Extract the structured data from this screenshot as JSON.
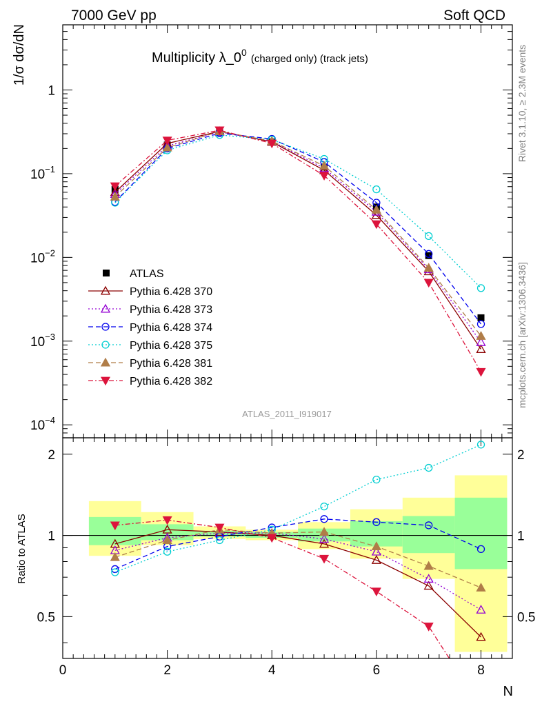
{
  "header": {
    "left": "7000 GeV pp",
    "right": "Soft QCD"
  },
  "side_labels": {
    "top": "Rivet 3.1.10, ≥ 2.3M events",
    "bottom": "mcplots.cern.ch [arXiv:1306.3436]"
  },
  "chart_data": {
    "type": "scatter",
    "title_main": "Multiplicity λ_0",
    "title_sup": "0",
    "title_note": "(charged only) (track jets)",
    "analysis_id": "ATLAS_2011_I919017",
    "ylabel": "1/σ dσ/dN",
    "ratio_ylabel": "Ratio to ATLAS",
    "xlabel": "N",
    "xlim": [
      0,
      8.6
    ],
    "ylim_log": [
      7e-05,
      6
    ],
    "ratio_ylim": [
      0.35,
      2.3
    ],
    "y_scale": "log",
    "x_ticks": [
      "0",
      "2",
      "4",
      "6",
      "8"
    ],
    "y_ticks": [
      {
        "base": "1",
        "exp": ""
      },
      {
        "base": "10",
        "exp": "−1"
      },
      {
        "base": "10",
        "exp": "−2"
      },
      {
        "base": "10",
        "exp": "−3"
      },
      {
        "base": "10",
        "exp": "−4"
      }
    ],
    "ratio_ticks": [
      "0.5",
      "1",
      "2"
    ],
    "legend_position": "left",
    "x": [
      1,
      2,
      3,
      4,
      5,
      6,
      7,
      8
    ],
    "reference": {
      "name": "ATLAS",
      "values": [
        0.065,
        0.22,
        0.31,
        0.24,
        0.12,
        0.04,
        0.0105,
        0.0019
      ]
    },
    "ratio_band_yellow": [
      [
        0.84,
        1.34
      ],
      [
        0.92,
        1.22
      ],
      [
        0.97,
        1.08
      ],
      [
        0.96,
        1.05
      ],
      [
        0.89,
        1.12
      ],
      [
        0.82,
        1.25
      ],
      [
        0.69,
        1.38
      ],
      [
        0.37,
        1.67
      ]
    ],
    "ratio_band_green": [
      [
        0.92,
        1.17
      ],
      [
        0.96,
        1.1
      ],
      [
        0.99,
        1.04
      ],
      [
        0.98,
        1.03
      ],
      [
        0.95,
        1.06
      ],
      [
        0.91,
        1.13
      ],
      [
        0.86,
        1.18
      ],
      [
        0.75,
        1.38
      ]
    ],
    "series": [
      {
        "name": "Pythia 6.428 370",
        "color": "#8b0000",
        "dash": "",
        "marker": "triangle-open",
        "values": [
          0.06,
          0.23,
          0.32,
          0.24,
          0.11,
          0.032,
          0.0068,
          0.0008
        ],
        "ratio": [
          0.93,
          1.05,
          1.03,
          1.0,
          0.93,
          0.81,
          0.65,
          0.42
        ]
      },
      {
        "name": "Pythia 6.428 373",
        "color": "#9400d3",
        "dash": "2,3",
        "marker": "triangle-open",
        "values": [
          0.057,
          0.215,
          0.315,
          0.245,
          0.116,
          0.035,
          0.0072,
          0.00097
        ],
        "ratio": [
          0.88,
          0.98,
          1.02,
          1.02,
          0.97,
          0.87,
          0.69,
          0.53
        ]
      },
      {
        "name": "Pythia 6.428 374",
        "color": "#0000ee",
        "dash": "7,4",
        "marker": "circle-open",
        "values": [
          0.046,
          0.2,
          0.305,
          0.26,
          0.138,
          0.045,
          0.011,
          0.0016
        ],
        "ratio": [
          0.75,
          0.91,
          0.99,
          1.07,
          1.15,
          1.12,
          1.09,
          0.89
        ]
      },
      {
        "name": "Pythia 6.428 375",
        "color": "#00ced1",
        "dash": "2,3",
        "marker": "circle-open",
        "values": [
          0.045,
          0.19,
          0.29,
          0.255,
          0.15,
          0.065,
          0.018,
          0.0043
        ],
        "ratio": [
          0.73,
          0.87,
          0.96,
          1.05,
          1.28,
          1.61,
          1.78,
          2.17
        ]
      },
      {
        "name": "Pythia 6.428 381",
        "color": "#b07d48",
        "dash": "7,4",
        "marker": "triangle-filled",
        "values": [
          0.053,
          0.205,
          0.32,
          0.245,
          0.124,
          0.037,
          0.0075,
          0.00115
        ],
        "ratio": [
          0.83,
          0.96,
          1.05,
          1.02,
          1.03,
          0.91,
          0.77,
          0.64
        ]
      },
      {
        "name": "Pythia 6.428 382",
        "color": "#dc143c",
        "dash": "7,3,2,3",
        "marker": "triangle-down-filled",
        "values": [
          0.071,
          0.25,
          0.33,
          0.23,
          0.095,
          0.025,
          0.005,
          0.00043
        ],
        "ratio": [
          1.09,
          1.14,
          1.07,
          0.98,
          0.82,
          0.62,
          0.46,
          0.23
        ]
      }
    ]
  }
}
